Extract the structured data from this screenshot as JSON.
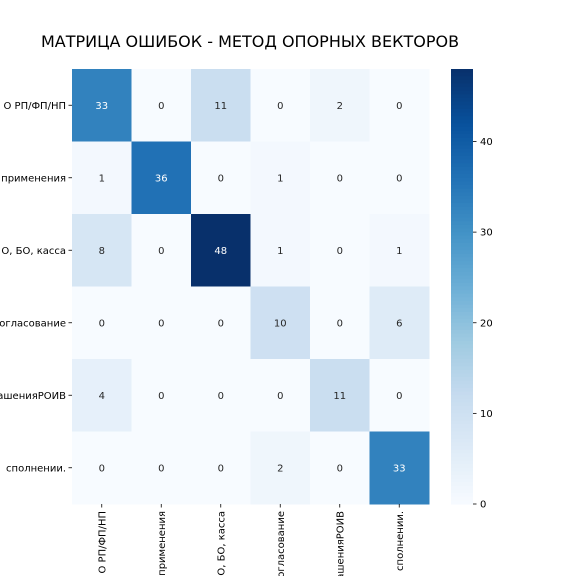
{
  "chart_data": {
    "type": "heatmap",
    "title": "МАТРИЦА ОШИБОК - МЕТОД ОПОРНЫХ ВЕКТОРОВ",
    "row_labels": [
      "О РП/ФП/НП",
      "применения",
      "О, БО, касса",
      "огласование",
      "ашенияРОИВ",
      "сполнении."
    ],
    "col_labels": [
      "О РП/ФП/НП",
      "применения",
      "О, БО, касса",
      "огласование",
      "ашенияРОИВ",
      "сполнении."
    ],
    "values": [
      [
        33,
        0,
        11,
        0,
        2,
        0
      ],
      [
        1,
        36,
        0,
        1,
        0,
        0
      ],
      [
        8,
        0,
        48,
        1,
        0,
        1
      ],
      [
        0,
        0,
        0,
        10,
        0,
        6
      ],
      [
        4,
        0,
        0,
        0,
        11,
        0
      ],
      [
        0,
        0,
        0,
        2,
        0,
        33
      ]
    ],
    "colorbar": {
      "min": 0,
      "max": 48,
      "ticks": [
        0,
        10,
        20,
        30,
        40
      ],
      "colormap": "Blues"
    }
  }
}
